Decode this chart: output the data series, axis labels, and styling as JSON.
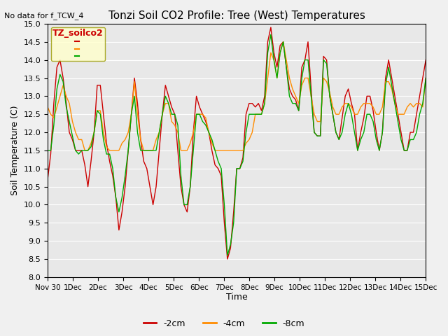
{
  "title": "Tonzi Soil CO2 Profile: Tree (West) Temperatures",
  "ylabel": "Soil Temperature (C)",
  "xlabel": "Time",
  "annotation": "No data for f_TCW_4",
  "legend_title": "TZ_soilco2",
  "ylim": [
    8.0,
    15.0
  ],
  "yticks": [
    8.0,
    8.5,
    9.0,
    9.5,
    10.0,
    10.5,
    11.0,
    11.5,
    12.0,
    12.5,
    13.0,
    13.5,
    14.0,
    14.5,
    15.0
  ],
  "xtick_positions": [
    0,
    1,
    2,
    3,
    4,
    5,
    6,
    7,
    8,
    9,
    10,
    11,
    12,
    13,
    14,
    15
  ],
  "xtick_labels": [
    "Nov 30",
    "Dec 1",
    "Dec 2",
    "Dec 3",
    "Dec 4",
    "Dec 5",
    "Dec 6",
    "Dec 7",
    "Dec 8",
    "Dec 9",
    "Dec 10",
    "Dec 11",
    "Dec 12",
    "Dec 13",
    "Dec 14",
    "Dec 15"
  ],
  "xtick_labels_fmt": [
    "Nov 30",
    "Dec 1",
    "Dec 2",
    "Dec 3",
    "Dec 4",
    "Dec 5",
    "Dec 6",
    "Dec 7",
    "Dec 8",
    "Dec 9",
    "Dec 10",
    "Dec 11",
    "Dec 12",
    "Dec 13",
    "Dec 14",
    "Dec 15"
  ],
  "bg_color": "#e8e8e8",
  "fig_color": "#f0f0f0",
  "line_colors": {
    "2cm": "#cc0000",
    "4cm": "#ff8c00",
    "8cm": "#00aa00"
  },
  "series_2cm": [
    10.7,
    11.4,
    12.8,
    13.8,
    14.0,
    13.5,
    12.8,
    12.0,
    11.8,
    11.5,
    11.5,
    11.5,
    11.1,
    10.5,
    11.2,
    12.0,
    13.3,
    13.3,
    12.5,
    11.7,
    11.2,
    10.8,
    10.2,
    9.3,
    9.8,
    10.5,
    11.5,
    12.5,
    13.5,
    12.8,
    11.8,
    11.2,
    11.0,
    10.5,
    10.0,
    10.5,
    11.5,
    12.5,
    13.3,
    13.0,
    12.7,
    12.5,
    11.5,
    10.5,
    10.0,
    9.8,
    10.5,
    12.0,
    13.0,
    12.7,
    12.5,
    12.3,
    12.0,
    11.5,
    11.1,
    11.0,
    10.8,
    9.5,
    8.5,
    8.8,
    9.8,
    11.0,
    11.0,
    11.3,
    12.5,
    12.8,
    12.8,
    12.7,
    12.8,
    12.6,
    13.0,
    14.5,
    14.9,
    14.2,
    13.8,
    14.4,
    14.5,
    13.8,
    13.2,
    13.0,
    12.9,
    12.6,
    13.8,
    14.0,
    14.5,
    13.2,
    12.0,
    11.9,
    11.9,
    14.1,
    14.0,
    13.0,
    12.5,
    12.0,
    11.8,
    12.4,
    13.0,
    13.2,
    12.8,
    12.5,
    11.5,
    12.0,
    12.4,
    13.0,
    13.0,
    12.6,
    12.0,
    11.5,
    12.0,
    13.5,
    14.0,
    13.5,
    13.0,
    12.5,
    12.0,
    11.5,
    11.5,
    12.0,
    12.0,
    12.5,
    13.0,
    13.5,
    14.0
  ],
  "series_4cm": [
    12.7,
    12.5,
    12.4,
    12.7,
    13.0,
    13.3,
    13.0,
    12.8,
    12.3,
    12.0,
    11.8,
    11.8,
    11.5,
    11.5,
    11.7,
    12.0,
    12.6,
    12.6,
    12.0,
    11.6,
    11.5,
    11.5,
    11.5,
    11.5,
    11.7,
    11.8,
    12.0,
    12.5,
    13.4,
    12.5,
    11.8,
    11.5,
    11.5,
    11.5,
    11.5,
    11.8,
    12.0,
    12.5,
    12.8,
    12.8,
    12.3,
    12.2,
    12.0,
    11.5,
    11.5,
    11.5,
    11.7,
    12.0,
    12.5,
    12.5,
    12.5,
    12.4,
    12.0,
    11.7,
    11.5,
    11.5,
    11.5,
    11.5,
    11.5,
    11.5,
    11.5,
    11.5,
    11.5,
    11.5,
    11.7,
    11.8,
    12.0,
    12.5,
    12.5,
    12.5,
    12.8,
    13.5,
    14.2,
    14.0,
    13.5,
    14.2,
    14.5,
    14.0,
    13.5,
    13.2,
    13.0,
    12.8,
    13.3,
    13.5,
    13.5,
    13.0,
    12.5,
    12.3,
    12.3,
    13.5,
    13.4,
    13.1,
    12.7,
    12.5,
    12.5,
    12.7,
    12.8,
    12.8,
    12.7,
    12.5,
    12.5,
    12.7,
    12.8,
    12.8,
    12.8,
    12.7,
    12.5,
    12.5,
    12.7,
    13.4,
    13.4,
    13.2,
    12.8,
    12.5,
    12.5,
    12.5,
    12.7,
    12.8,
    12.7,
    12.8,
    12.8,
    12.7,
    13.5
  ],
  "series_8cm": [
    11.5,
    11.5,
    12.2,
    13.2,
    13.6,
    13.4,
    12.7,
    12.3,
    11.9,
    11.5,
    11.4,
    11.5,
    11.5,
    11.5,
    11.6,
    12.0,
    12.6,
    12.5,
    11.8,
    11.4,
    11.4,
    11.0,
    10.2,
    9.8,
    10.2,
    10.8,
    11.5,
    12.5,
    13.0,
    12.0,
    11.5,
    11.5,
    11.5,
    11.5,
    11.5,
    11.5,
    12.0,
    12.5,
    13.0,
    12.8,
    12.5,
    12.5,
    12.2,
    10.8,
    10.0,
    10.0,
    10.5,
    11.5,
    12.5,
    12.5,
    12.3,
    12.2,
    12.0,
    11.8,
    11.5,
    11.2,
    11.0,
    10.0,
    8.6,
    8.9,
    9.5,
    11.0,
    11.0,
    11.2,
    12.0,
    12.5,
    12.5,
    12.5,
    12.5,
    12.5,
    12.8,
    14.2,
    14.7,
    14.0,
    13.5,
    14.2,
    14.5,
    13.8,
    13.0,
    12.8,
    12.8,
    12.6,
    13.5,
    14.0,
    14.0,
    13.0,
    12.0,
    11.9,
    11.9,
    14.0,
    13.9,
    13.0,
    12.5,
    12.0,
    11.8,
    12.0,
    12.5,
    12.8,
    12.5,
    12.0,
    11.5,
    11.8,
    12.0,
    12.5,
    12.5,
    12.3,
    11.8,
    11.5,
    12.0,
    13.3,
    13.8,
    13.3,
    12.8,
    12.3,
    11.8,
    11.5,
    11.5,
    11.8,
    11.8,
    12.0,
    12.5,
    12.8,
    13.5
  ]
}
